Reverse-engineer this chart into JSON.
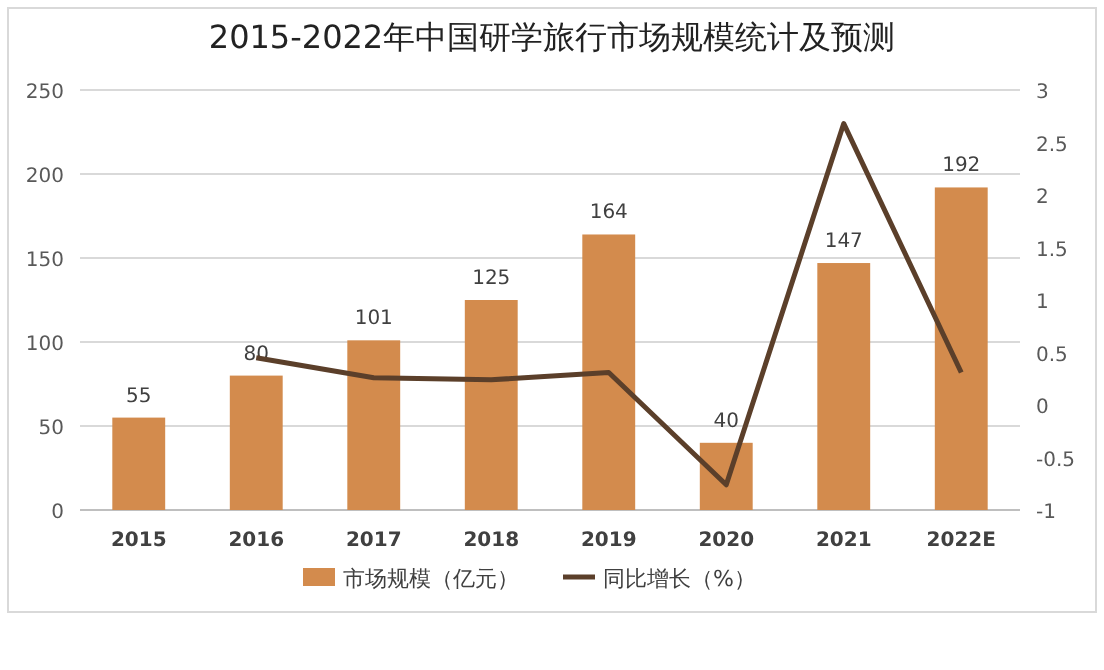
{
  "chart_data": {
    "type": "bar",
    "title": "2015-2022年中国研学旅行市场规模统计及预测",
    "categories": [
      "2015",
      "2016",
      "2017",
      "2018",
      "2019",
      "2020",
      "2021",
      "2022E"
    ],
    "series": [
      {
        "name": "市场规模（亿元）",
        "color": "#d38b4d",
        "values": [
          55,
          80,
          101,
          125,
          164,
          40,
          147,
          192
        ],
        "value_labels": [
          "55",
          "80",
          "101",
          "125",
          "164",
          "40",
          "147",
          "192"
        ]
      },
      {
        "name": "同比增长（%）",
        "type": "line",
        "axis": "y2",
        "color": "#5b3f2a",
        "values": [
          null,
          0.45,
          0.26,
          0.24,
          0.31,
          -0.76,
          2.68,
          0.31
        ]
      }
    ],
    "ylim": [
      0,
      250
    ],
    "yticks": [
      0,
      50,
      100,
      150,
      200,
      250
    ],
    "y2lim": [
      -1,
      3
    ],
    "y2ticks": [
      -1,
      -0.5,
      0,
      0.5,
      1,
      1.5,
      2,
      2.5,
      3
    ],
    "grid": "y",
    "legend": "bottom",
    "marker": "none",
    "line_style": "solid"
  }
}
